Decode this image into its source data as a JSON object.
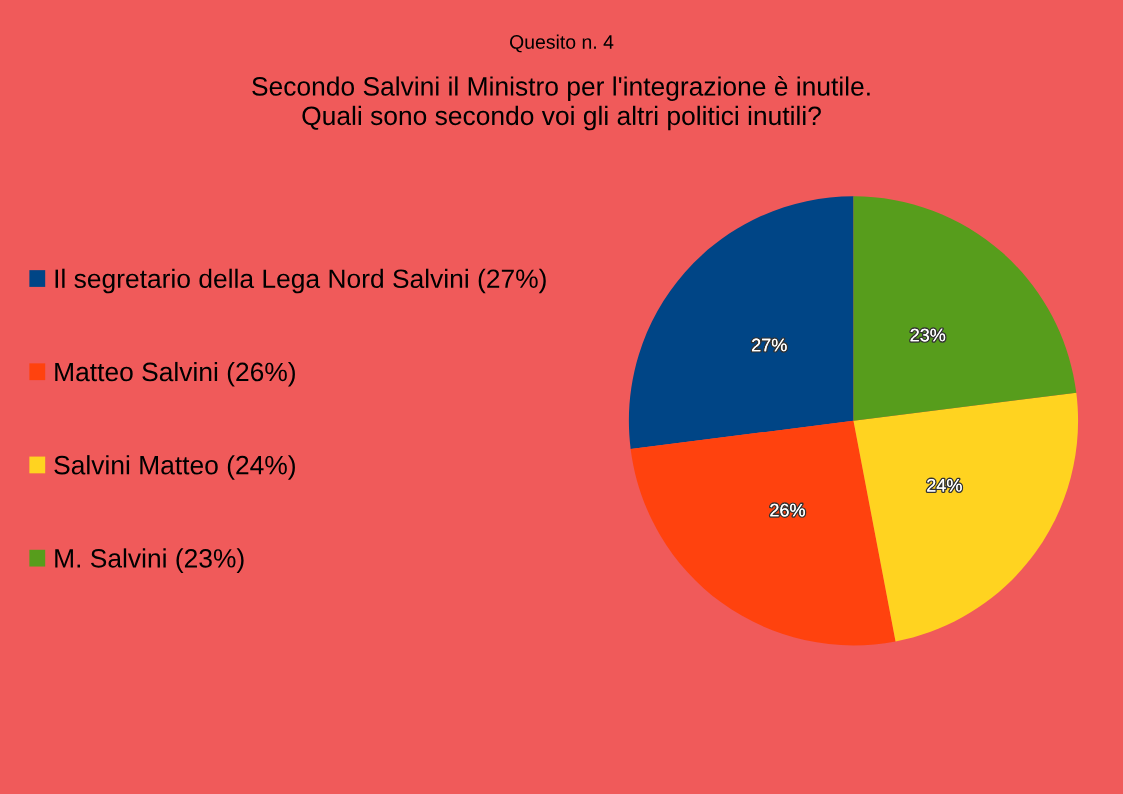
{
  "chart_data": {
    "type": "pie",
    "subtitle": "Quesito n. 4",
    "title": "Secondo Salvini il Ministro per l'integrazione è inutile.\nQuali sono secondo voi gli altri politici inutili?",
    "categories": [
      "Il segretario della Lega Nord Salvini (27%)",
      "Matteo Salvini (26%)",
      "Salvini Matteo (24%)",
      "M. Salvini (23%)"
    ],
    "values": [
      27,
      26,
      24,
      23
    ],
    "colors": [
      "#004586",
      "#ff420e",
      "#ffd320",
      "#579d1c"
    ],
    "value_labels": [
      "27%",
      "26%",
      "24%",
      "23%"
    ],
    "legend": "left"
  }
}
